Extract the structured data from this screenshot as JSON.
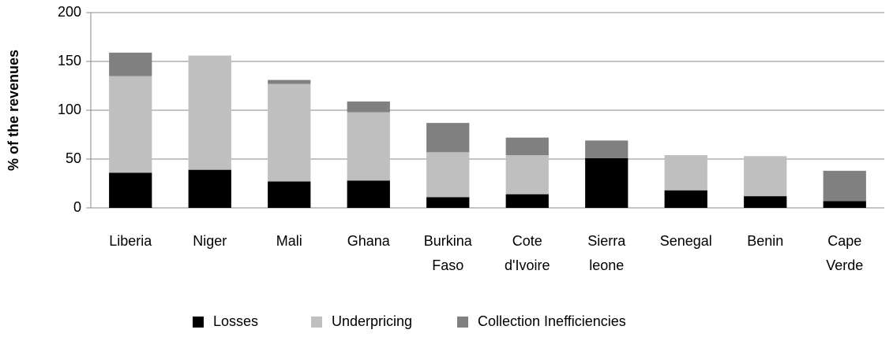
{
  "chart_data": {
    "type": "stacked_bar",
    "y_label": "% of the revenues",
    "categories": [
      "Liberia",
      "Niger",
      "Mali",
      "Ghana",
      "Burkina Faso",
      "Cote d'Ivoire",
      "Sierra leone",
      "Senegal",
      "Benin",
      "Cape Verde"
    ],
    "series": [
      {
        "name": "Losses",
        "color": "#000000",
        "values": [
          36,
          39,
          27,
          28,
          11,
          14,
          51,
          18,
          12,
          7
        ]
      },
      {
        "name": "Underpricing",
        "color": "#bfbfbf",
        "values": [
          99,
          117,
          100,
          70,
          46,
          40,
          0,
          36,
          41,
          0
        ]
      },
      {
        "name": "Collection Inefficiencies",
        "color": "#808080",
        "values": [
          24,
          0,
          4,
          11,
          30,
          18,
          18,
          0,
          0,
          31
        ]
      }
    ],
    "ylim": [
      0,
      200
    ],
    "yticks": [
      0,
      50,
      100,
      150,
      200
    ],
    "grid": true,
    "legend": "bottom"
  }
}
